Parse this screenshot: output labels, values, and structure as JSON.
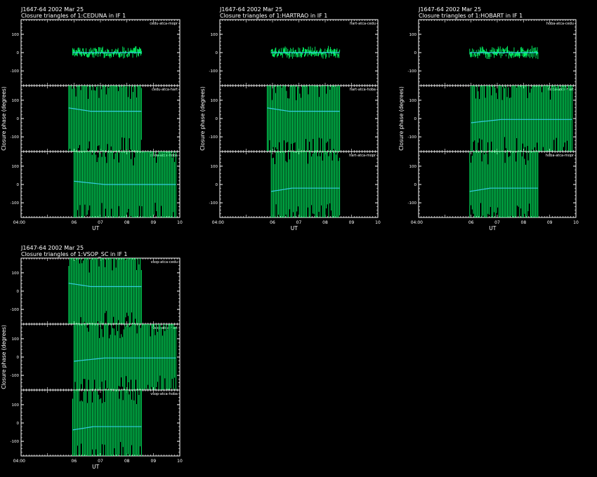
{
  "colors": {
    "background": "#000000",
    "axes": "#ffffff",
    "data": "#00ff66",
    "model": "#33ccdd"
  },
  "chart_data": [
    {
      "type": "line",
      "title_line1": "J1647-64  2002 Mar 25",
      "title_line2": "Closure triangles of 1:CEDUNA in IF 1",
      "ylabel": "Closure phase  (degrees)",
      "xlabel": "UT",
      "xticks": [
        "04:00",
        "06",
        "07",
        "08",
        "09",
        "10"
      ],
      "ylim": [
        -180,
        180
      ],
      "yticks": [
        -100,
        0,
        100
      ],
      "panels": [
        {
          "label": "cedu-atca-mopr",
          "y_center": 0,
          "spread": 18,
          "x_start": 5.95,
          "x_end": 8.55
        },
        {
          "label": "cedu-atca-hart",
          "y_center": 40,
          "spread": 180,
          "x_start": 5.8,
          "x_end": 8.55
        },
        {
          "label": "cedu-atca-hoba",
          "y_center": 0,
          "spread": 180,
          "x_start": 6.0,
          "x_end": 9.85
        }
      ]
    },
    {
      "type": "line",
      "title_line1": "J1647-64  2002 Mar 25",
      "title_line2": "Closure triangles of 1:HARTRAO in IF 1",
      "ylabel": "Closure phase  (degrees)",
      "xlabel": "UT",
      "xticks": [
        "04:00",
        "06",
        "07",
        "08",
        "09",
        "10"
      ],
      "ylim": [
        -180,
        180
      ],
      "yticks": [
        -100,
        0,
        100
      ],
      "panels": [
        {
          "label": "hart-atca-cedu",
          "y_center": 0,
          "spread": 18,
          "x_start": 5.95,
          "x_end": 8.55
        },
        {
          "label": "hart-atca-hoba",
          "y_center": 40,
          "spread": 180,
          "x_start": 5.8,
          "x_end": 8.55
        },
        {
          "label": "hart-atca-mopr",
          "y_center": -20,
          "spread": 180,
          "x_start": 5.95,
          "x_end": 8.55
        }
      ]
    },
    {
      "type": "line",
      "title_line1": "J1647-64  2002 Mar 25",
      "title_line2": "Closure triangles of 1:HOBART in IF 1",
      "ylabel": "Closure phase  (degrees)",
      "xlabel": "UT",
      "xticks": [
        "04:00",
        "06",
        "07",
        "08",
        "09",
        "10"
      ],
      "ylim": [
        -180,
        180
      ],
      "yticks": [
        -100,
        0,
        100
      ],
      "panels": [
        {
          "label": "hoba-atca-cedu",
          "y_center": 0,
          "spread": 18,
          "x_start": 5.95,
          "x_end": 8.55
        },
        {
          "label": "hoba-atca-hart",
          "y_center": -5,
          "spread": 180,
          "x_start": 6.0,
          "x_end": 9.85
        },
        {
          "label": "hoba-atca-mopr",
          "y_center": -20,
          "spread": 180,
          "x_start": 5.95,
          "x_end": 8.55
        }
      ]
    },
    {
      "type": "line",
      "title_line1": "J1647-64  2002 Mar 25",
      "title_line2": "Closure triangles of 1:VSOP_SC in IF 1",
      "ylabel": "Closure phase  (degrees)",
      "xlabel": "UT",
      "xticks": [
        "04:00",
        "06",
        "07",
        "08",
        "09",
        "10"
      ],
      "ylim": [
        -180,
        180
      ],
      "yticks": [
        -100,
        0,
        100
      ],
      "panels": [
        {
          "label": "vsop-atca-cedu",
          "y_center": 25,
          "spread": 180,
          "x_start": 5.8,
          "x_end": 8.55
        },
        {
          "label": "vsop-atca-hart",
          "y_center": -5,
          "spread": 180,
          "x_start": 6.0,
          "x_end": 9.85
        },
        {
          "label": "vsop-atca-hoba",
          "y_center": -20,
          "spread": 180,
          "x_start": 5.95,
          "x_end": 8.55
        }
      ]
    }
  ]
}
